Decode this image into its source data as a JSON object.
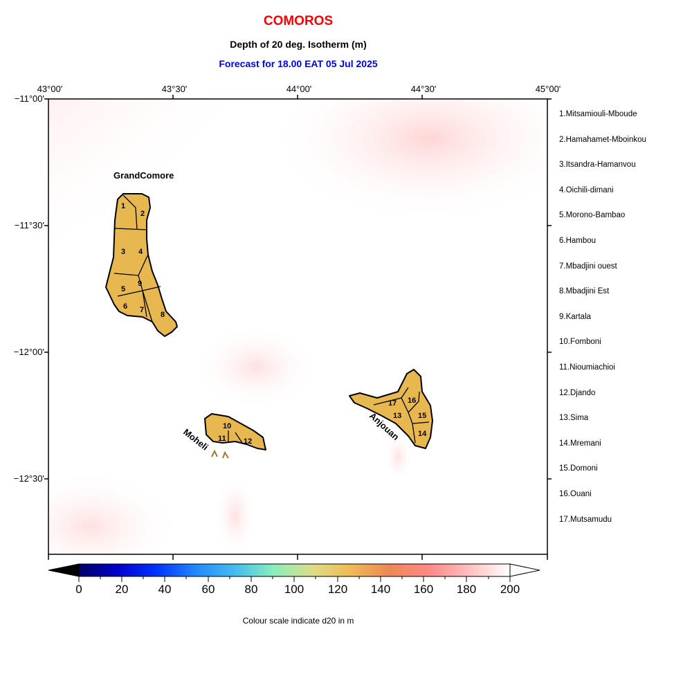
{
  "header": {
    "title": "COMOROS",
    "subtitle": "Depth of 20 deg. Isotherm (m)",
    "forecast": "Forecast for  18.00 EAT 05 Jul 2025"
  },
  "axes": {
    "lon_labels": [
      "43°00'",
      "43°30'",
      "44°00'",
      "44°30'",
      "45°00'"
    ],
    "lat_labels": [
      "−11°00'",
      "−11°30'",
      "−12°00'",
      "−12°30'"
    ]
  },
  "islands": {
    "grand_comore": "GrandComore",
    "moheli": "Moheli",
    "anjouan": "Anjouan"
  },
  "region_numbers": [
    "1",
    "2",
    "3",
    "4",
    "5",
    "6",
    "7",
    "8",
    "9",
    "10",
    "11",
    "12",
    "13",
    "14",
    "15",
    "16",
    "17"
  ],
  "regions": [
    "1.Mitsamiouli-Mboude",
    "2.Hamahamet-Mboinkou",
    "3.Itsandra-Hamanvou",
    "4.Oichili-dimani",
    "5.Morono-Bambao",
    "6.Hambou",
    "7.Mbadjini ouest",
    "8.Mbadjini Est",
    "9.Kartala",
    "10.Fomboni",
    "11.Nioumiachioi",
    "12.Djando",
    "13.Sima",
    "14.Mremani",
    "15.Domoni",
    "16.Ouani",
    "17.Mutsamudu"
  ],
  "colorbar": {
    "ticks": [
      "0",
      "20",
      "40",
      "60",
      "80",
      "100",
      "120",
      "140",
      "160",
      "180",
      "200"
    ],
    "label": "Colour scale indicate d20 in m",
    "colors": [
      "#000066",
      "#0000cc",
      "#0033ff",
      "#2288ff",
      "#44bbee",
      "#88eebb",
      "#dddd88",
      "#eebb55",
      "#ee8855",
      "#ff8888",
      "#ffbbbb",
      "#ffffff"
    ]
  },
  "colors": {
    "title": "#ff0000",
    "forecast": "#0000ee",
    "land": "#e8b850"
  }
}
